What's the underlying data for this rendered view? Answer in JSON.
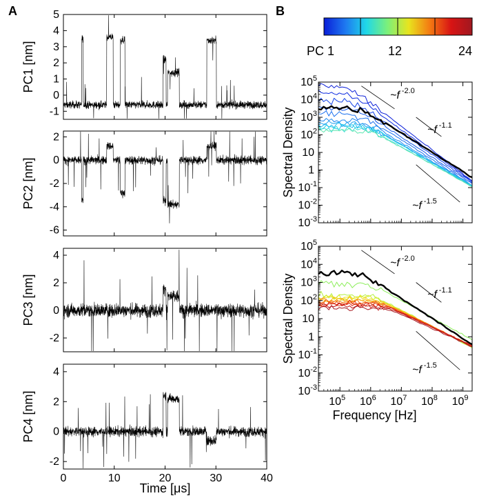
{
  "panel_a_label": "A",
  "panel_b_label": "B",
  "colorbar": {
    "ticks": [
      "PC 1",
      "12",
      "24"
    ],
    "gradient": [
      "#0a1ed8",
      "#1e78f0",
      "#20d8e8",
      "#7cf07a",
      "#e8e41e",
      "#f47a12",
      "#d81414",
      "#a01820"
    ]
  },
  "chart_data": [
    {
      "type": "line",
      "ylabel": "PC1 [nm]",
      "ylim": [
        -1.5,
        5
      ],
      "yticks": [
        "-1",
        "0",
        "1",
        "2",
        "3",
        "4",
        "5"
      ],
      "xlim": [
        0,
        40
      ],
      "xticks": [
        "0",
        "10",
        "20",
        "30",
        "40"
      ],
      "xlabel": "",
      "baseline": -0.6,
      "noise": 0.35,
      "states": [
        [
          3.6,
          3.9,
          3.5
        ],
        [
          8.5,
          9.8,
          3.6
        ],
        [
          11.2,
          12.1,
          3.4
        ],
        [
          19.6,
          20.2,
          2.2
        ],
        [
          20.5,
          22.8,
          1.4
        ],
        [
          28.2,
          30.1,
          3.4
        ]
      ],
      "series": [
        {
          "values": []
        }
      ]
    },
    {
      "type": "line",
      "ylabel": "PC2 [nm]",
      "ylim": [
        -6.5,
        2.5
      ],
      "yticks": [
        "-6",
        "-4",
        "-2",
        "0",
        "2"
      ],
      "xlim": [
        0,
        40
      ],
      "xticks": [
        "0",
        "10",
        "20",
        "30",
        "40"
      ],
      "xlabel": "",
      "baseline": 0,
      "noise": 0.55,
      "states": [
        [
          3.6,
          3.9,
          -3.5
        ],
        [
          8.5,
          9.8,
          1.2
        ],
        [
          11.2,
          12.1,
          -2.8
        ],
        [
          19.6,
          20.2,
          -3.5
        ],
        [
          20.5,
          22.8,
          -3.8
        ],
        [
          28.2,
          30.1,
          1.2
        ]
      ],
      "series": [
        {
          "values": []
        }
      ]
    },
    {
      "type": "line",
      "ylabel": "PC3 [nm]",
      "ylim": [
        -3,
        4.5
      ],
      "yticks": [
        "-2",
        "0",
        "2",
        "4"
      ],
      "xlim": [
        0,
        40
      ],
      "xticks": [
        "0",
        "10",
        "20",
        "30",
        "40"
      ],
      "xlabel": "",
      "baseline": 0,
      "noise": 0.75,
      "states": [
        [
          19.6,
          20.2,
          1.6
        ],
        [
          20.5,
          22.8,
          1.0
        ]
      ],
      "series": [
        {
          "values": []
        }
      ]
    },
    {
      "type": "line",
      "ylabel": "PC4 [nm]",
      "ylim": [
        -2.5,
        4.5
      ],
      "yticks": [
        "-2",
        "0",
        "2",
        "4"
      ],
      "xlim": [
        0,
        40
      ],
      "xticks": [
        "0",
        "10",
        "20",
        "30",
        "40"
      ],
      "xlabel": "Time [μs]",
      "baseline": 0,
      "noise": 0.5,
      "states": [
        [
          19.6,
          20.2,
          2.4
        ],
        [
          20.5,
          22.8,
          2.2
        ],
        [
          28.2,
          30.1,
          -0.6
        ]
      ],
      "series": [
        {
          "values": []
        }
      ]
    },
    {
      "type": "line",
      "log_x": true,
      "log_y": true,
      "ylabel": "Spectral Density",
      "xlabel": "",
      "xlim": [
        20000,
        2000000000
      ],
      "ylim": [
        0.001,
        100000
      ],
      "yticks": [
        {
          "m": "10",
          "e": "5"
        },
        {
          "m": "10",
          "e": "4"
        },
        {
          "m": "10",
          "e": "3"
        },
        {
          "m": "10",
          "e": "2"
        },
        {
          "m": "10",
          "e": ""
        },
        {
          "m": "1",
          "e": ""
        },
        {
          "m": "10",
          "e": "-1"
        },
        {
          "m": "10",
          "e": "-2"
        },
        {
          "m": "10",
          "e": "-3"
        }
      ],
      "annotations": [
        {
          "text": "~f",
          "exp": "-2.0"
        },
        {
          "text": "~f",
          "exp": "-1.1"
        },
        {
          "text": "~f",
          "exp": "-1.5"
        }
      ],
      "reference_lines": [
        {
          "x": [
            500000,
            6000000
          ],
          "y": [
            60000,
            3000
          ]
        },
        {
          "x": [
            30000000,
            200000000
          ],
          "y": [
            1000,
            80
          ]
        },
        {
          "x": [
            30000000,
            800000000
          ],
          "y": [
            2,
            0.015
          ]
        }
      ],
      "series": [
        {
          "pc": 0,
          "color": "#000000",
          "width": 2.4,
          "plateau": 3500,
          "knee": 500000,
          "slope": -1.1
        },
        {
          "pc": 1,
          "color": "#0a1ed8",
          "width": 1,
          "plateau": 60000,
          "knee": 200000,
          "slope": -1.35
        },
        {
          "pc": 2,
          "color": "#0c2ae0",
          "width": 1,
          "plateau": 25000,
          "knee": 220000,
          "slope": -1.28
        },
        {
          "pc": 3,
          "color": "#1040e6",
          "width": 1,
          "plateau": 9000,
          "knee": 300000,
          "slope": -1.22
        },
        {
          "pc": 4,
          "color": "#1458ea",
          "width": 1,
          "plateau": 3000,
          "knee": 400000,
          "slope": -1.15
        },
        {
          "pc": 5,
          "color": "#1a70ee",
          "width": 1,
          "plateau": 1500,
          "knee": 500000,
          "slope": -1.12
        },
        {
          "pc": 6,
          "color": "#1e88f0",
          "width": 1,
          "plateau": 700,
          "knee": 600000,
          "slope": -1.06
        },
        {
          "pc": 7,
          "color": "#20a0f0",
          "width": 1,
          "plateau": 450,
          "knee": 700000,
          "slope": -1.04
        },
        {
          "pc": 8,
          "color": "#20b8ee",
          "width": 1,
          "plateau": 350,
          "knee": 800000,
          "slope": -1.02
        },
        {
          "pc": 9,
          "color": "#22ccea",
          "width": 1,
          "plateau": 300,
          "knee": 900000,
          "slope": -1.0
        },
        {
          "pc": 10,
          "color": "#3cdcd6",
          "width": 1,
          "plateau": 220,
          "knee": 900000,
          "slope": -0.98
        },
        {
          "pc": 11,
          "color": "#60e6b0",
          "width": 1,
          "plateau": 180,
          "knee": 1000000,
          "slope": -0.97
        }
      ]
    },
    {
      "type": "line",
      "log_x": true,
      "log_y": true,
      "ylabel": "Spectral Density",
      "xlabel": "Frequency [Hz]",
      "xlim": [
        20000,
        2000000000
      ],
      "ylim": [
        0.001,
        100000
      ],
      "yticks": [
        {
          "m": "10",
          "e": "5"
        },
        {
          "m": "10",
          "e": "4"
        },
        {
          "m": "10",
          "e": "3"
        },
        {
          "m": "10",
          "e": "2"
        },
        {
          "m": "10",
          "e": ""
        },
        {
          "m": "1",
          "e": ""
        },
        {
          "m": "10",
          "e": "-1"
        },
        {
          "m": "10",
          "e": "-2"
        },
        {
          "m": "10",
          "e": "-3"
        }
      ],
      "xticks": [
        {
          "m": "10",
          "e": "5"
        },
        {
          "m": "10",
          "e": "6"
        },
        {
          "m": "10",
          "e": "7"
        },
        {
          "m": "10",
          "e": "8"
        },
        {
          "m": "10",
          "e": "9"
        }
      ],
      "annotations": [
        {
          "text": "~f",
          "exp": "-2.0"
        },
        {
          "text": "~f",
          "exp": "-1.1"
        },
        {
          "text": "~f",
          "exp": "-1.5"
        }
      ],
      "reference_lines": [
        {
          "x": [
            500000,
            6000000
          ],
          "y": [
            60000,
            3000
          ]
        },
        {
          "x": [
            30000000,
            200000000
          ],
          "y": [
            1000,
            80
          ]
        },
        {
          "x": [
            30000000,
            800000000
          ],
          "y": [
            2,
            0.015
          ]
        }
      ],
      "series": [
        {
          "pc": 0,
          "color": "#000000",
          "width": 2.4,
          "plateau": 3500,
          "knee": 500000,
          "slope": -1.1
        },
        {
          "pc": 12,
          "color": "#8cee5a",
          "width": 1,
          "plateau": 900,
          "knee": 1000000,
          "slope": -0.95
        },
        {
          "pc": 13,
          "color": "#b4f040",
          "width": 1,
          "plateau": 200,
          "knee": 1200000,
          "slope": -0.9
        },
        {
          "pc": 14,
          "color": "#d8ec2a",
          "width": 1,
          "plateau": 160,
          "knee": 1400000,
          "slope": -0.88
        },
        {
          "pc": 15,
          "color": "#f0de1e",
          "width": 1,
          "plateau": 140,
          "knee": 1500000,
          "slope": -0.86
        },
        {
          "pc": 16,
          "color": "#f6c01a",
          "width": 1,
          "plateau": 120,
          "knee": 1700000,
          "slope": -0.85
        },
        {
          "pc": 17,
          "color": "#f8a016",
          "width": 1,
          "plateau": 100,
          "knee": 1900000,
          "slope": -0.84
        },
        {
          "pc": 18,
          "color": "#f47e12",
          "width": 1,
          "plateau": 90,
          "knee": 2100000,
          "slope": -0.83
        },
        {
          "pc": 19,
          "color": "#ee5a12",
          "width": 1,
          "plateau": 80,
          "knee": 2300000,
          "slope": -0.82
        },
        {
          "pc": 20,
          "color": "#e63c14",
          "width": 1,
          "plateau": 70,
          "knee": 2500000,
          "slope": -0.81
        },
        {
          "pc": 21,
          "color": "#d82414",
          "width": 1,
          "plateau": 60,
          "knee": 2800000,
          "slope": -0.8
        },
        {
          "pc": 22,
          "color": "#c01818",
          "width": 1,
          "plateau": 50,
          "knee": 3100000,
          "slope": -0.79
        },
        {
          "pc": 23,
          "color": "#a81820",
          "width": 1,
          "plateau": 40,
          "knee": 3400000,
          "slope": -0.78
        }
      ]
    }
  ]
}
